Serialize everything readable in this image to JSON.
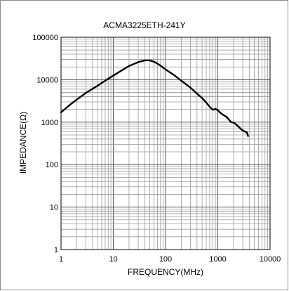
{
  "chart_data": {
    "type": "line",
    "title": "ACMA3225ETH-241Y",
    "xlabel": "FREQUENCY(MHz)",
    "ylabel": "IMPEDANCE(Ω)",
    "xscale": "log",
    "yscale": "log",
    "xlim": [
      1,
      10000
    ],
    "ylim": [
      1,
      100000
    ],
    "x_ticks": [
      {
        "value": 1,
        "label": "1"
      },
      {
        "value": 10,
        "label": "10"
      },
      {
        "value": 100,
        "label": "100"
      },
      {
        "value": 1000,
        "label": "1000"
      },
      {
        "value": 10000,
        "label": "10000"
      }
    ],
    "y_ticks": [
      {
        "value": 1,
        "label": "1"
      },
      {
        "value": 10,
        "label": "10"
      },
      {
        "value": 100,
        "label": "100"
      },
      {
        "value": 1000,
        "label": "1000"
      },
      {
        "value": 10000,
        "label": "10000"
      },
      {
        "value": 100000,
        "label": "100000"
      }
    ],
    "grid": true,
    "line_color": "#000000",
    "series": [
      {
        "x": [
          1,
          1.5,
          2,
          3,
          5,
          7,
          10,
          15,
          20,
          30,
          40,
          50,
          60,
          70,
          80,
          100,
          150,
          200,
          300,
          400,
          500,
          600,
          700,
          800,
          900,
          1000,
          1200,
          1500,
          1800,
          2000,
          2200,
          2500,
          2800,
          3000,
          3300,
          3600,
          3800
        ],
        "y": [
          1700,
          2600,
          3400,
          4900,
          7200,
          9500,
          12500,
          17000,
          21000,
          26000,
          28500,
          28500,
          26500,
          24000,
          21500,
          17500,
          12500,
          9500,
          6500,
          4700,
          3700,
          2900,
          2300,
          1950,
          2050,
          1900,
          1550,
          1300,
          1000,
          980,
          900,
          780,
          680,
          640,
          600,
          580,
          470
        ]
      }
    ]
  }
}
